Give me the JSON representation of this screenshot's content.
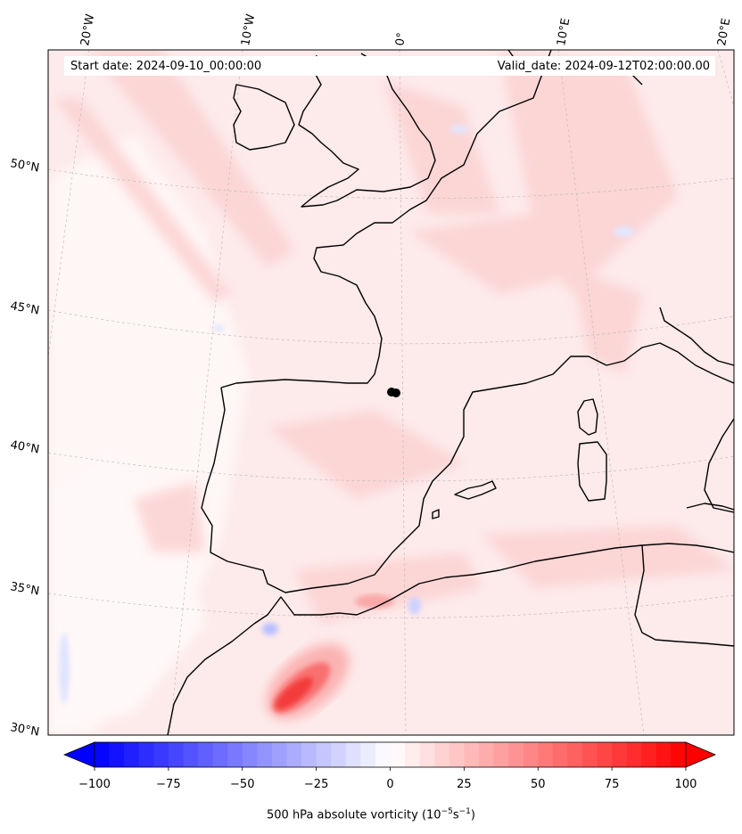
{
  "header": {
    "start_date": "Start date: 2024-09-10_00:00:00",
    "valid_date": "Valid_date: 2024-09-12T02:00:00.00"
  },
  "axes": {
    "lon_labels": [
      "20°W",
      "10°W",
      "0°",
      "10°E",
      "20°E"
    ],
    "lat_labels": [
      "50°N",
      "45°N",
      "40°N",
      "35°N",
      "30°N"
    ]
  },
  "colorbar": {
    "title_prefix": "500 hPa absolute vorticity (10",
    "title_exp1": "−5",
    "title_mid": "s",
    "title_exp2": "−1",
    "title_suffix": ")",
    "tick_labels": [
      "−100",
      "−75",
      "−50",
      "−25",
      "0",
      "25",
      "50",
      "75",
      "100"
    ],
    "min": -100,
    "max": 100,
    "levels": 40,
    "colors": {
      "negative": "#0000ff",
      "neutral": "#ffffff",
      "positive": "#ff0000"
    }
  },
  "markers": {
    "location": "black-dot",
    "color": "#000000"
  },
  "colors": {
    "coastline": "#000000",
    "background_field": "#fde9e9",
    "gridline": "#bbbbbb"
  }
}
